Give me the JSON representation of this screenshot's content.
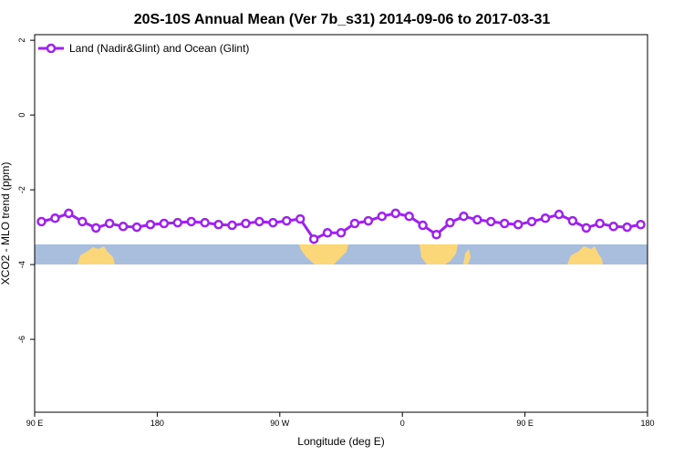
{
  "chart_data": {
    "type": "line",
    "title": "20S-10S Annual Mean (Ver 7b_s31)   2014-09-06 to 2017-03-31",
    "x_label": "Longitude (deg E)",
    "y_label": "XCO2 - MLO trend (ppm)",
    "x": [
      95,
      105,
      115,
      125,
      135,
      145,
      155,
      165,
      175,
      185,
      195,
      205,
      215,
      225,
      235,
      245,
      255,
      265,
      275,
      285,
      295,
      305,
      315,
      325,
      335,
      345,
      355,
      365,
      375,
      385,
      395,
      405,
      415,
      425,
      435,
      445,
      455,
      465,
      475,
      485,
      495,
      505,
      515,
      525,
      535
    ],
    "series": [
      {
        "name": "Land (Nadir&Glint) and Ocean (Glint)",
        "color": "#a020f0",
        "values": [
          -2.85,
          -2.76,
          -2.63,
          -2.85,
          -3.02,
          -2.9,
          -2.98,
          -3.0,
          -2.93,
          -2.9,
          -2.88,
          -2.85,
          -2.88,
          -2.93,
          -2.95,
          -2.9,
          -2.85,
          -2.88,
          -2.83,
          -2.78,
          -3.32,
          -3.15,
          -3.15,
          -2.9,
          -2.83,
          -2.71,
          -2.63,
          -2.71,
          -2.95,
          -3.2,
          -2.88,
          -2.71,
          -2.8,
          -2.85,
          -2.9,
          -2.93,
          -2.85,
          -2.76,
          -2.66,
          -2.83,
          -3.02,
          -2.9,
          -2.98,
          -3.0,
          -2.93
        ]
      }
    ],
    "xlim": [
      90,
      540
    ],
    "xticks": [
      {
        "value": 90,
        "label": "90 E"
      },
      {
        "value": 180,
        "label": "180"
      },
      {
        "value": 270,
        "label": "90 W"
      },
      {
        "value": 360,
        "label": "0"
      },
      {
        "value": 450,
        "label": "90 E"
      },
      {
        "value": 540,
        "label": "180"
      }
    ],
    "ylim": [
      -7.95,
      2.15
    ],
    "yticks": [
      2,
      0,
      -2,
      -4,
      -6
    ],
    "legend": "top-left"
  }
}
